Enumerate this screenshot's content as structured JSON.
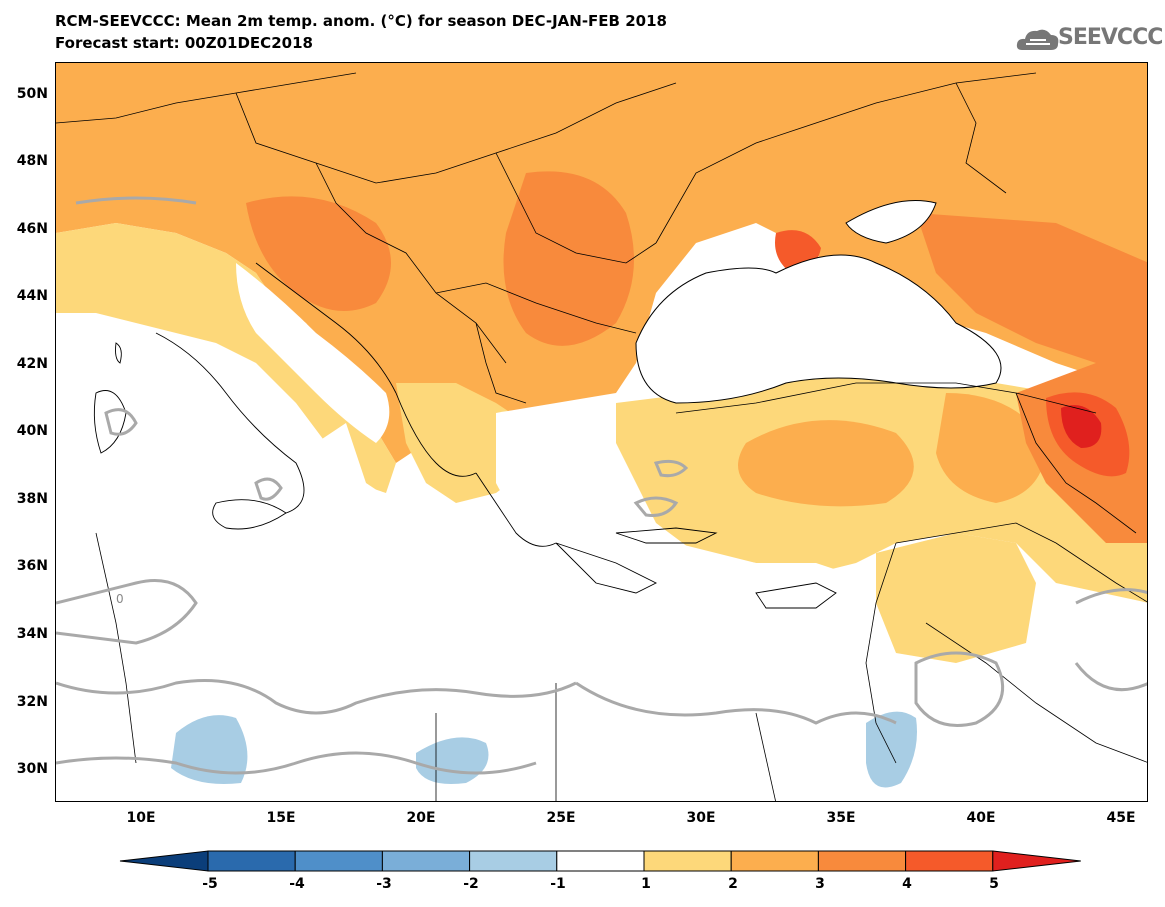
{
  "title_line1": "RCM-SEEVCCC: Mean 2m temp. anom. (°C) for season DEC-JAN-FEB 2018",
  "title_line2": "Forecast start: 00Z01DEC2018",
  "logo_text": "SEEVCCC",
  "logo_icon": "cloud-icon",
  "lat_labels": [
    "50N",
    "48N",
    "46N",
    "44N",
    "42N",
    "40N",
    "38N",
    "36N",
    "34N",
    "32N",
    "30N"
  ],
  "lon_labels": [
    "10E",
    "15E",
    "20E",
    "25E",
    "30E",
    "35E",
    "40E",
    "45E"
  ],
  "colorbar": {
    "labels": [
      "-5",
      "-4",
      "-3",
      "-2",
      "-1",
      "1",
      "2",
      "3",
      "4",
      "5"
    ],
    "colors": [
      "#0b3e7a",
      "#2a6aad",
      "#4f8fc9",
      "#7aaed8",
      "#a8cde4",
      "#ffffff",
      "#fdd87a",
      "#fcae4e",
      "#f88a3c",
      "#f55a2a",
      "#e0201e"
    ]
  },
  "contour_label": "0",
  "colors": {
    "land_warm_1": "#fdd87a",
    "land_warm_2": "#fcae4e",
    "land_warm_3": "#f88a3c",
    "land_warm_4": "#f55a2a",
    "land_warm_5": "#e0201e",
    "cool_1": "#a8cde4",
    "sea": "#ffffff",
    "contour": "#a9a9a9"
  }
}
